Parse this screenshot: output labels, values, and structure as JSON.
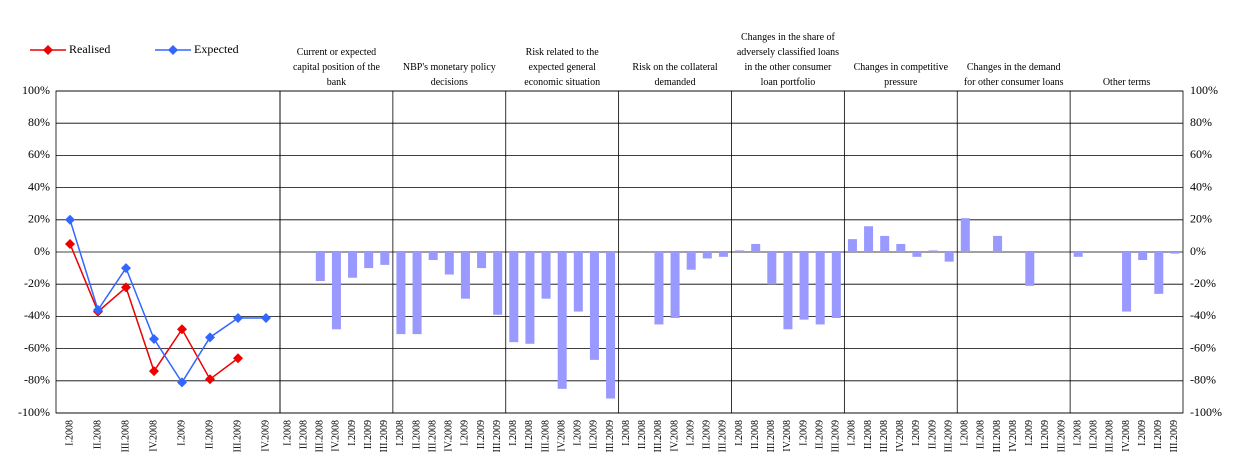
{
  "chart_data": [
    {
      "type": "line",
      "categories": [
        "I.2008",
        "II.2008",
        "III.2008",
        "IV.2008",
        "I.2009",
        "II.2009",
        "III.2009",
        "IV.2009"
      ],
      "series": [
        {
          "name": "Realised",
          "color": "#ee0000",
          "values": [
            5,
            -37,
            -22,
            -74,
            -48,
            -79,
            -66,
            null
          ]
        },
        {
          "name": "Expected",
          "color": "#3366ff",
          "values": [
            20,
            -36,
            -10,
            -54,
            -81,
            -53,
            -41,
            -41
          ]
        }
      ],
      "ylim": [
        -100,
        100
      ],
      "yticks": [
        {
          "value": -100,
          "label": "-100%"
        },
        {
          "value": -80,
          "label": "-80%"
        },
        {
          "value": -60,
          "label": "-60%"
        },
        {
          "value": -40,
          "label": "-40%"
        },
        {
          "value": -20,
          "label": "-20%"
        },
        {
          "value": 0,
          "label": "0%"
        },
        {
          "value": 20,
          "label": "20%"
        },
        {
          "value": 40,
          "label": "40%"
        },
        {
          "value": 60,
          "label": "60%"
        },
        {
          "value": 80,
          "label": "80%"
        },
        {
          "value": 100,
          "label": "100%"
        }
      ],
      "grid": true
    },
    {
      "type": "bar",
      "categories": [
        "I.2008",
        "II.2008",
        "III.2008",
        "IV.2008",
        "I.2009",
        "II.2009",
        "III.2009"
      ],
      "color": "#9999ff",
      "panels": [
        {
          "title": "Current or expected capital position of the bank",
          "values": [
            0,
            0,
            -18,
            -48,
            -16,
            -10,
            -8
          ]
        },
        {
          "title": "NBP's monetary policy decisions",
          "values": [
            -51,
            -51,
            -5,
            -14,
            -29,
            -10,
            -39
          ]
        },
        {
          "title": "Risk related to the expected general economic situation",
          "values": [
            -56,
            -57,
            -29,
            -85,
            -37,
            -67,
            -91
          ]
        },
        {
          "title": "Risk on the collateral demanded",
          "values": [
            0,
            0,
            -45,
            -41,
            -11,
            -4,
            -3
          ]
        },
        {
          "title": "Changes in the share of adversely classified loans in the other consumer loan portfolio",
          "values": [
            1,
            5,
            -20,
            -48,
            -42,
            -45,
            -41
          ]
        },
        {
          "title": "Changes in competitive pressure",
          "values": [
            8,
            16,
            10,
            5,
            -3,
            1,
            -6
          ]
        },
        {
          "title": "Changes in the demand for other consumer loans",
          "values": [
            21,
            0,
            10,
            0,
            -21,
            0,
            0
          ]
        },
        {
          "title": "Other terms",
          "values": [
            -3,
            0,
            0,
            -37,
            -5,
            -26,
            -1
          ]
        }
      ],
      "ylim": [
        -100,
        100
      ],
      "yticks": [
        {
          "value": -100,
          "label": "-100%"
        },
        {
          "value": -80,
          "label": "-80%"
        },
        {
          "value": -60,
          "label": "-60%"
        },
        {
          "value": -40,
          "label": "-40%"
        },
        {
          "value": -20,
          "label": "-20%"
        },
        {
          "value": 0,
          "label": "0%"
        },
        {
          "value": 20,
          "label": "20%"
        },
        {
          "value": 40,
          "label": "40%"
        },
        {
          "value": 60,
          "label": "60%"
        },
        {
          "value": 80,
          "label": "80%"
        },
        {
          "value": 100,
          "label": "100%"
        }
      ],
      "grid": true
    }
  ]
}
